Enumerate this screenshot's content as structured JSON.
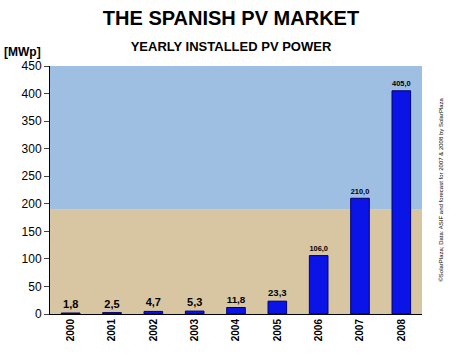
{
  "chart_data": {
    "type": "bar",
    "title": "THE SPANISH PV MARKET",
    "subtitle": "YEARLY INSTALLED PV POWER",
    "ylabel": "[MWp]",
    "annotations": [
      "©SolarPlaza; Data: ASIF and forecast for 2007 & 2008 by SolarPlaza"
    ],
    "categories": [
      "2000",
      "2001",
      "2002",
      "2003",
      "2004",
      "2005",
      "2006",
      "2007",
      "2008"
    ],
    "values": [
      1.8,
      2.5,
      4.7,
      5.3,
      11.8,
      23.3,
      106.0,
      210.0,
      405.0
    ],
    "value_labels": [
      "1,8",
      "2,5",
      "4,7",
      "5,3",
      "11,8",
      "23,3",
      "106,0",
      "210,0",
      "405,0"
    ],
    "data_labels": true,
    "color": "#0a14e6",
    "ylim": [
      0,
      450
    ],
    "yticks": [
      0,
      50,
      100,
      150,
      200,
      250,
      300,
      350,
      400,
      450
    ],
    "grid": false
  }
}
